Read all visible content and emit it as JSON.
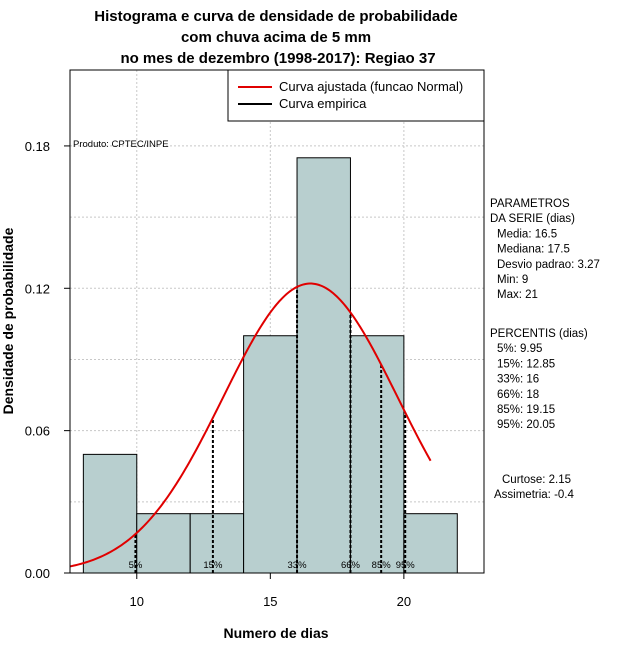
{
  "chart_data": {
    "type": "bar",
    "title": [
      "Histograma e curva de densidade de probabilidade",
      "com chuva acima de 5 mm",
      "no mes de dezembro (1998-2017): Regiao 37"
    ],
    "xlabel": "Numero de dias",
    "ylabel": "Densidade de probabilidade",
    "xlim": [
      7.5,
      23
    ],
    "ylim": [
      0,
      0.212
    ],
    "x_ticks": [
      10,
      15,
      20
    ],
    "y_ticks": [
      0.0,
      0.06,
      0.12,
      0.18
    ],
    "y_tick_labels": [
      "0.00",
      "0.06",
      "0.12",
      "0.18"
    ],
    "bins": [
      {
        "x0": 8,
        "x1": 10,
        "density": 0.05
      },
      {
        "x0": 10,
        "x1": 12,
        "density": 0.025
      },
      {
        "x0": 12,
        "x1": 14,
        "density": 0.025
      },
      {
        "x0": 14,
        "x1": 16,
        "density": 0.1
      },
      {
        "x0": 16,
        "x1": 18,
        "density": 0.175
      },
      {
        "x0": 18,
        "x1": 20,
        "density": 0.1
      },
      {
        "x0": 20,
        "x1": 22,
        "density": 0.025
      }
    ],
    "normal_curve": {
      "mean": 16.5,
      "sd": 3.27,
      "x_start": 7.5,
      "x_end": 21
    },
    "percentile_lines": [
      {
        "label": "5%",
        "x": 9.95
      },
      {
        "label": "15%",
        "x": 12.85
      },
      {
        "label": "33%",
        "x": 16
      },
      {
        "label": "66%",
        "x": 18
      },
      {
        "label": "85%",
        "x": 19.15
      },
      {
        "label": "95%",
        "x": 20.05
      }
    ],
    "legend": [
      {
        "label": "Curva ajustada (funcao Normal)",
        "color": "#e00000"
      },
      {
        "label": "Curva empirica",
        "color": "#000000"
      }
    ],
    "legend_position": "top-right",
    "bar_color": "#b8cfcf",
    "curve_color": "#e00000",
    "grid": true,
    "annotation": "Produto: CPTEC/INPE"
  },
  "sidebar": {
    "parametros": [
      "PARAMETROS",
      "DA SERIE (dias)",
      "Media: 16.5",
      "Mediana: 17.5",
      "Desvio padrao: 3.27",
      "Min: 9",
      "Max: 21"
    ],
    "percentis": [
      "PERCENTIS (dias)",
      "5%: 9.95",
      "15%: 12.85",
      "33%: 16",
      "66%: 18",
      "85%: 19.15",
      "95%: 20.05"
    ],
    "curtose": "Curtose: 2.15",
    "assimetria": "Assimetria: -0.4"
  }
}
